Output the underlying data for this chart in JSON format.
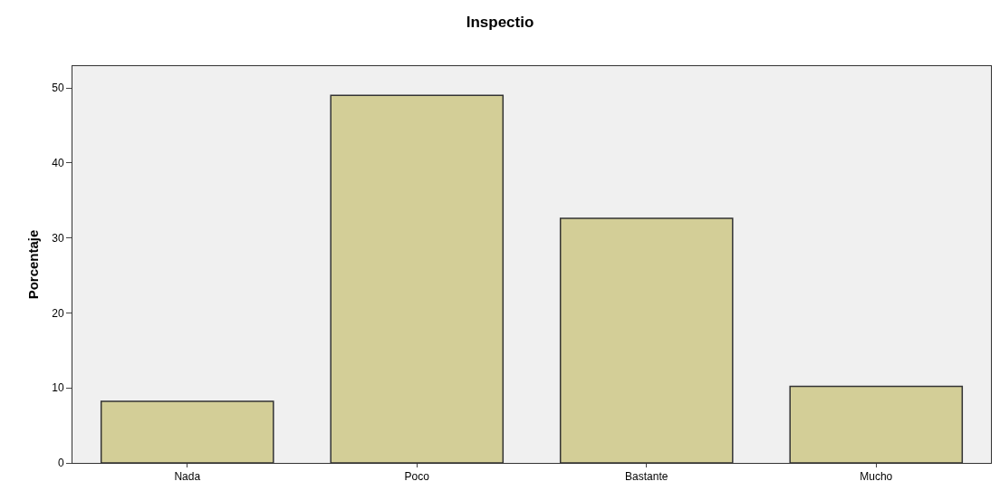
{
  "chart_data": {
    "type": "bar",
    "title": "Inspectio",
    "ylabel": "Porcentaje",
    "categories": [
      "Nada",
      "Poco",
      "Bastante",
      "Mucho"
    ],
    "values": [
      8.2,
      49.0,
      32.6,
      10.2
    ],
    "color": "#d3ce97",
    "ylim": [
      0,
      52.9
    ],
    "yticks": [
      0,
      10,
      20,
      30,
      40,
      50
    ],
    "grid": false,
    "legend": false
  }
}
